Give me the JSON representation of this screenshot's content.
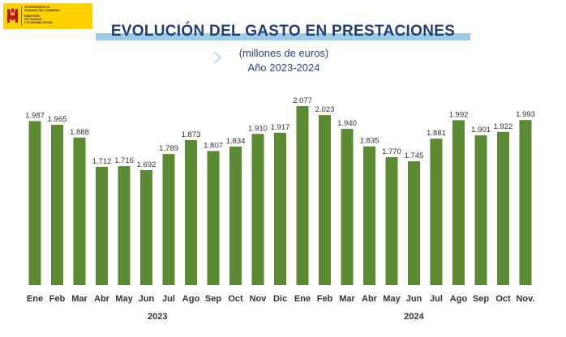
{
  "logo": {
    "lines": [
      "VICEPRESIDENCIA",
      "SEGUNDA DEL GOBIERNO",
      "MINISTERIO",
      "DE TRABAJO",
      "Y ECONOMÍA SOCIAL"
    ]
  },
  "colors": {
    "bar": "#5b8a32",
    "title": "#1f3e78",
    "title_bar": "#9ccbe9",
    "logo": "#ffd200"
  },
  "chart_data": {
    "type": "bar",
    "title": "EVOLUCIÓN DEL GASTO EN PRESTACIONES",
    "subtitle": "(millones de euros)",
    "subtitle2": "Año 2023-2024",
    "categories": [
      "Ene",
      "Feb",
      "Mar",
      "Abr",
      "May",
      "Jun",
      "Jul",
      "Ago",
      "Sep",
      "Oct",
      "Nov",
      "Dic",
      "Ene",
      "Feb",
      "Mar",
      "Abr",
      "May",
      "Jun",
      "Jul",
      "Ago",
      "Sep",
      "Oct",
      "Nov."
    ],
    "values": [
      1987,
      1965,
      1888,
      1712,
      1716,
      1692,
      1789,
      1873,
      1807,
      1834,
      1910,
      1917,
      2077,
      2023,
      1940,
      1835,
      1770,
      1745,
      1881,
      1992,
      1901,
      1922,
      1993
    ],
    "value_labels": [
      "1.987",
      "1.965",
      "1.888",
      "1.712",
      "1.716",
      "1.692",
      "1.789",
      "1.873",
      "1.807",
      "1.834",
      "1.910",
      "1.917",
      "2.077",
      "2.023",
      "1.940",
      "1.835",
      "1.770",
      "1.745",
      "1.881",
      "1.992",
      "1.901",
      "1.922",
      "1.993"
    ],
    "year_groups": [
      {
        "label": "2023",
        "start": 0,
        "end": 11
      },
      {
        "label": "2024",
        "start": 12,
        "end": 22
      }
    ],
    "ylim": [
      1000,
      2077
    ],
    "xlabel": "",
    "ylabel": "",
    "grid": false,
    "legend": "none"
  }
}
